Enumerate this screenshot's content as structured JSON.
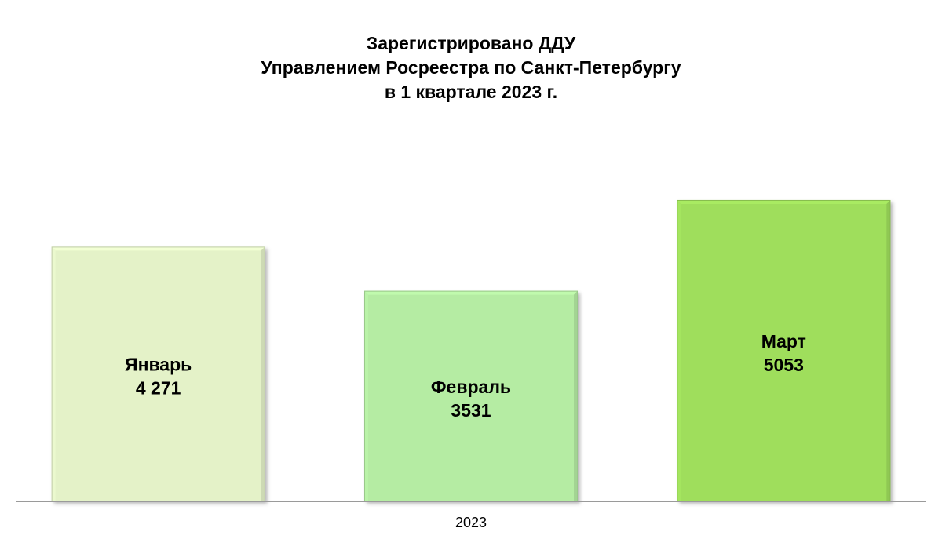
{
  "chart_data": {
    "type": "bar",
    "title_lines": [
      "Зарегистрировано ДДУ",
      "Управлением Росреестра по Санкт-Петербургу",
      "в 1 квартале 2023 г."
    ],
    "xlabel": "",
    "ylabel": "",
    "x_category_label": "2023",
    "categories": [
      "Январь",
      "Февраль",
      "Март"
    ],
    "series": [
      {
        "values": [
          4271,
          3531,
          5053
        ],
        "value_labels": [
          "4 271",
          "3531",
          "5053"
        ],
        "colors": [
          "#e4f2c8",
          "#b5eca3",
          "#9fde5c"
        ]
      }
    ],
    "ylim": [
      0,
      5500
    ],
    "grid": false,
    "legend": "none"
  }
}
